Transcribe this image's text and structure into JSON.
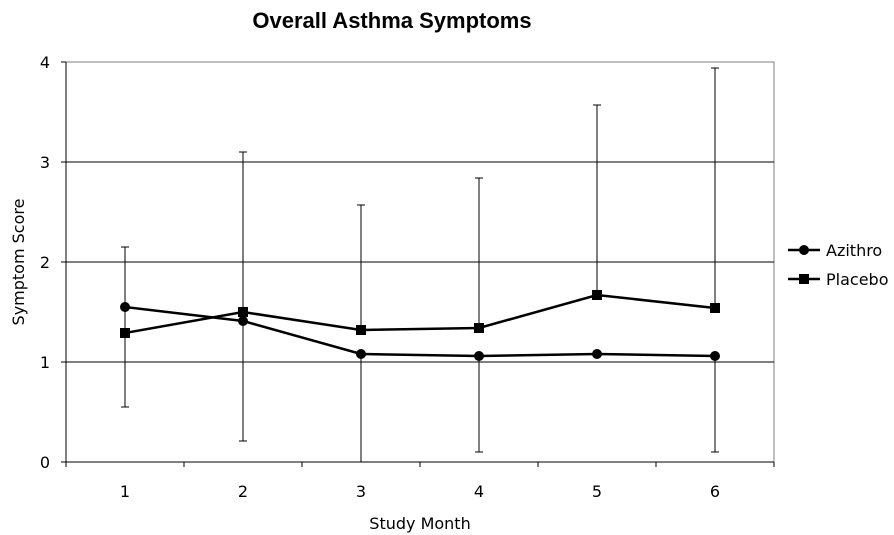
{
  "chart_data": {
    "type": "line",
    "title": "Overall Asthma Symptoms",
    "xlabel": "Study Month",
    "ylabel": "Symptom Score",
    "categories": [
      "1",
      "2",
      "3",
      "4",
      "5",
      "6"
    ],
    "ylim": [
      0,
      4
    ],
    "yticks": [
      "0",
      "1",
      "2",
      "3",
      "4"
    ],
    "grid": "horizontal",
    "legend_position": "right",
    "series": [
      {
        "name": "Azithro",
        "marker": "circle",
        "color": "#000000",
        "values": [
          1.55,
          1.41,
          1.08,
          1.06,
          1.08,
          1.06
        ],
        "error_low": [
          null,
          null,
          0.0,
          0.1,
          null,
          0.1
        ],
        "error_high": [
          null,
          null,
          null,
          null,
          null,
          null
        ]
      },
      {
        "name": "Placebo",
        "marker": "square",
        "color": "#000000",
        "values": [
          1.29,
          1.5,
          1.32,
          1.34,
          1.67,
          1.54
        ],
        "error_low": [
          0.55,
          0.21,
          null,
          null,
          null,
          null
        ],
        "error_high": [
          2.15,
          3.1,
          2.57,
          2.84,
          3.57,
          3.94
        ]
      }
    ]
  }
}
